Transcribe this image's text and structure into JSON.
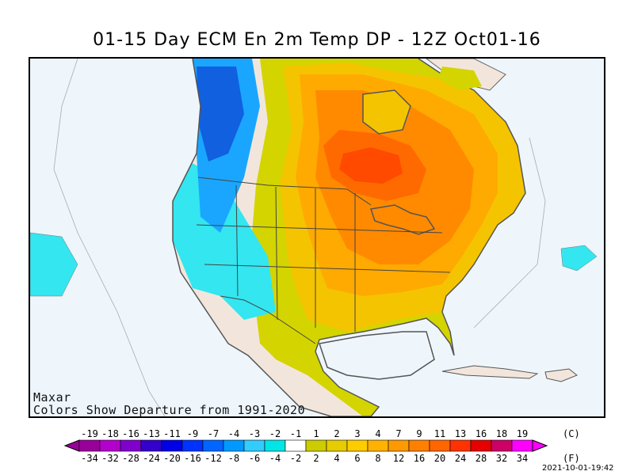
{
  "title": "01-15 Day ECM En 2m Temp DP - 12Z Oct01-16",
  "credit": "Maxar",
  "caption": "Colors Show Departure from 1991-2020",
  "timestamp": "2021-10-01-19:42",
  "legend": {
    "unit_c": "(C)",
    "unit_f": "(F)",
    "celsius_labels": [
      "-19",
      "-18",
      "-16",
      "-13",
      "-11",
      "-9",
      "-7",
      "-4",
      "-3",
      "-2",
      "-1",
      "1",
      "2",
      "3",
      "4",
      "7",
      "9",
      "11",
      "13",
      "16",
      "18",
      "19"
    ],
    "fahrenheit_labels": [
      "-34",
      "-32",
      "-28",
      "-24",
      "-20",
      "-16",
      "-12",
      "-8",
      "-6",
      "-4",
      "-2",
      "2",
      "4",
      "6",
      "8",
      "12",
      "16",
      "20",
      "24",
      "28",
      "32",
      "34"
    ],
    "colors": [
      "#990099",
      "#b300cc",
      "#8000cc",
      "#3300cc",
      "#0000e6",
      "#0033ff",
      "#0066ff",
      "#0099ff",
      "#33ccff",
      "#00e6e6",
      "#ffffff",
      "#cccc00",
      "#e6cc00",
      "#ffcc00",
      "#ffb300",
      "#ff9900",
      "#ff8000",
      "#ff6600",
      "#ff3300",
      "#e60000",
      "#cc0066",
      "#ff00ff"
    ]
  },
  "map_colors": {
    "ocean": "#eef6fc",
    "neutral": "#f2e6dc",
    "near_normal_warm": "#d4d400",
    "warm_1": "#f5c400",
    "warm_2": "#ffaa00",
    "warm_3": "#ff8a00",
    "warm_4": "#ff6a00",
    "warm_5": "#ff4a00",
    "cool_1": "#33e6f0",
    "cool_2": "#1aa6ff",
    "cool_3": "#1060e0"
  }
}
